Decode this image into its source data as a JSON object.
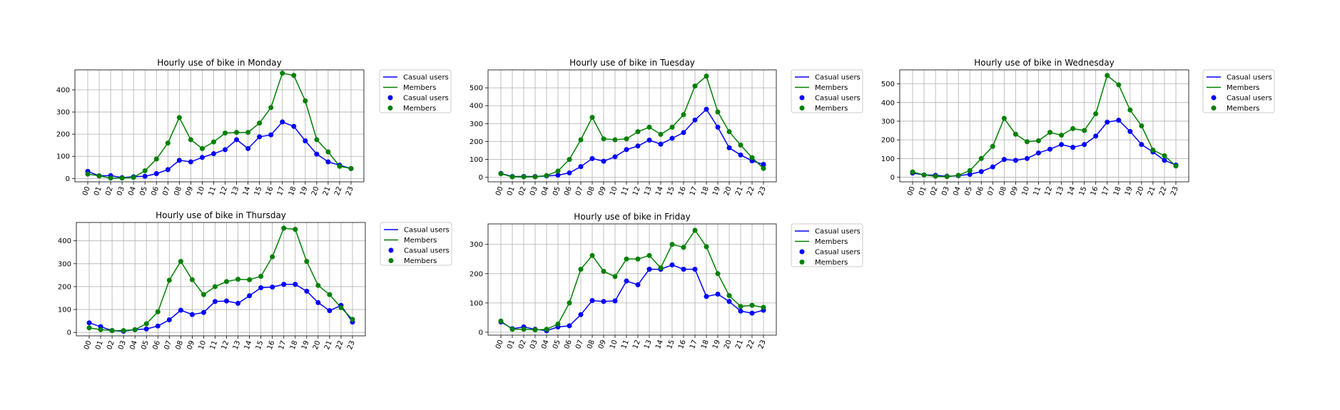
{
  "chart_data": [
    {
      "type": "line",
      "title": "Hourly use of bike in Monday",
      "categories": [
        "00",
        "01",
        "02",
        "03",
        "04",
        "05",
        "06",
        "07",
        "08",
        "09",
        "10",
        "11",
        "12",
        "13",
        "14",
        "15",
        "16",
        "17",
        "18",
        "19",
        "20",
        "21",
        "22",
        "23"
      ],
      "ylim": [
        -15,
        490
      ],
      "yticks": [
        0,
        100,
        200,
        300,
        400
      ],
      "grid": true,
      "legend_placement": "outside-right",
      "legend": [
        "Casual users",
        "Members",
        "Casual users",
        "Members"
      ],
      "series": [
        {
          "name": "Casual users",
          "color": "#0000ff",
          "values": [
            32,
            12,
            13,
            4,
            8,
            10,
            22,
            40,
            82,
            75,
            95,
            112,
            130,
            175,
            135,
            188,
            197,
            255,
            235,
            170,
            110,
            75,
            60,
            45
          ]
        },
        {
          "name": "Members",
          "color": "#008000",
          "values": [
            20,
            12,
            2,
            2,
            5,
            35,
            88,
            160,
            275,
            175,
            135,
            165,
            205,
            208,
            208,
            250,
            320,
            475,
            465,
            350,
            175,
            120,
            55,
            45
          ]
        }
      ]
    },
    {
      "type": "line",
      "title": "Hourly use of bike in Tuesday",
      "categories": [
        "00",
        "01",
        "02",
        "03",
        "04",
        "05",
        "06",
        "07",
        "08",
        "09",
        "10",
        "11",
        "12",
        "13",
        "14",
        "15",
        "16",
        "17",
        "18",
        "19",
        "20",
        "21",
        "22",
        "23"
      ],
      "ylim": [
        -25,
        600
      ],
      "yticks": [
        0,
        100,
        200,
        300,
        400,
        500
      ],
      "grid": true,
      "legend_placement": "outside-right",
      "legend": [
        "Casual users",
        "Members",
        "Casual users",
        "Members"
      ],
      "series": [
        {
          "name": "Casual users",
          "color": "#0000ff",
          "values": [
            22,
            5,
            5,
            5,
            8,
            12,
            25,
            60,
            105,
            90,
            115,
            155,
            175,
            208,
            185,
            218,
            250,
            320,
            380,
            280,
            165,
            125,
            92,
            72
          ]
        },
        {
          "name": "Members",
          "color": "#008000",
          "values": [
            20,
            3,
            3,
            3,
            10,
            35,
            100,
            210,
            335,
            215,
            210,
            215,
            255,
            280,
            240,
            280,
            350,
            510,
            565,
            365,
            255,
            180,
            110,
            50
          ]
        }
      ]
    },
    {
      "type": "line",
      "title": "Hourly use of bike in Wednesday",
      "categories": [
        "00",
        "01",
        "02",
        "03",
        "04",
        "05",
        "06",
        "07",
        "08",
        "09",
        "10",
        "11",
        "12",
        "13",
        "14",
        "15",
        "16",
        "17",
        "18",
        "19",
        "20",
        "21",
        "22",
        "23"
      ],
      "ylim": [
        -25,
        575
      ],
      "yticks": [
        0,
        100,
        200,
        300,
        400,
        500
      ],
      "grid": true,
      "legend_placement": "outside-right",
      "legend": [
        "Casual users",
        "Members",
        "Casual users",
        "Members"
      ],
      "series": [
        {
          "name": "Casual users",
          "color": "#0000ff",
          "values": [
            22,
            12,
            10,
            5,
            8,
            15,
            30,
            55,
            95,
            90,
            100,
            130,
            150,
            175,
            160,
            175,
            220,
            295,
            305,
            245,
            175,
            135,
            90,
            65
          ]
        },
        {
          "name": "Members",
          "color": "#008000",
          "values": [
            28,
            12,
            5,
            3,
            10,
            35,
            100,
            165,
            315,
            230,
            190,
            195,
            240,
            225,
            260,
            250,
            340,
            545,
            495,
            360,
            275,
            145,
            115,
            60
          ]
        }
      ]
    },
    {
      "type": "line",
      "title": "Hourly use of bike in Thursday",
      "categories": [
        "00",
        "01",
        "02",
        "03",
        "04",
        "05",
        "06",
        "07",
        "08",
        "09",
        "10",
        "11",
        "12",
        "13",
        "14",
        "15",
        "16",
        "17",
        "18",
        "19",
        "20",
        "21",
        "22",
        "23"
      ],
      "ylim": [
        -15,
        480
      ],
      "yticks": [
        0,
        100,
        200,
        300,
        400
      ],
      "grid": true,
      "legend_placement": "outside-right",
      "legend": [
        "Casual users",
        "Members",
        "Casual users",
        "Members"
      ],
      "series": [
        {
          "name": "Casual users",
          "color": "#0000ff",
          "values": [
            42,
            25,
            8,
            5,
            12,
            15,
            28,
            55,
            97,
            78,
            87,
            135,
            137,
            127,
            160,
            195,
            198,
            210,
            210,
            180,
            130,
            95,
            118,
            45
          ]
        },
        {
          "name": "Members",
          "color": "#008000",
          "values": [
            20,
            12,
            8,
            8,
            12,
            38,
            90,
            228,
            310,
            230,
            165,
            200,
            222,
            232,
            230,
            245,
            330,
            455,
            450,
            310,
            205,
            165,
            108,
            57
          ]
        }
      ]
    },
    {
      "type": "line",
      "title": "Hourly use of bike in Friday",
      "categories": [
        "00",
        "01",
        "02",
        "03",
        "04",
        "05",
        "06",
        "07",
        "08",
        "09",
        "10",
        "11",
        "12",
        "13",
        "14",
        "15",
        "16",
        "17",
        "18",
        "19",
        "20",
        "21",
        "22",
        "23"
      ],
      "ylim": [
        -10,
        370
      ],
      "yticks": [
        0,
        100,
        200,
        300
      ],
      "grid": true,
      "legend_placement": "outside-right",
      "legend": [
        "Casual users",
        "Members",
        "Casual users",
        "Members"
      ],
      "series": [
        {
          "name": "Casual users",
          "color": "#0000ff",
          "values": [
            35,
            12,
            18,
            10,
            5,
            18,
            22,
            60,
            108,
            105,
            107,
            175,
            162,
            215,
            215,
            230,
            215,
            215,
            122,
            130,
            105,
            72,
            65,
            75
          ]
        },
        {
          "name": "Members",
          "color": "#008000",
          "values": [
            38,
            10,
            10,
            8,
            10,
            28,
            100,
            215,
            262,
            208,
            190,
            250,
            250,
            262,
            220,
            300,
            290,
            348,
            292,
            200,
            125,
            88,
            92,
            85
          ]
        }
      ]
    }
  ]
}
